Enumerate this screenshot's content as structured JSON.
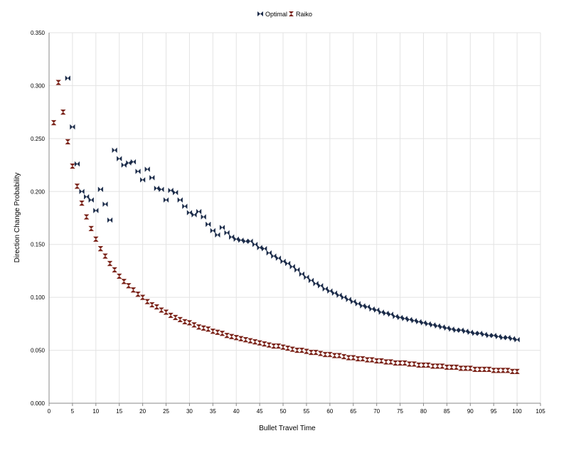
{
  "colors": {
    "optimal": "#1c2c4a",
    "raiko": "#7a2218",
    "grid": "#e3e3e3",
    "axis": "#888888"
  },
  "chart_data": {
    "type": "scatter",
    "xlabel": "Bullet Travel Time",
    "ylabel": "Direction Change Probability",
    "xlim": [
      0,
      105
    ],
    "ylim": [
      0,
      0.35
    ],
    "x_ticks": [
      "0",
      "5",
      "10",
      "15",
      "20",
      "25",
      "30",
      "35",
      "40",
      "45",
      "50",
      "55",
      "60",
      "65",
      "70",
      "75",
      "80",
      "85",
      "90",
      "95",
      "100",
      "105"
    ],
    "y_ticks": [
      "0.000",
      "0.050",
      "0.100",
      "0.150",
      "0.200",
      "0.250",
      "0.300",
      "0.350"
    ],
    "grid": true,
    "legend_position": "top-center",
    "series": [
      {
        "name": "Optimal",
        "marker": "bowtie",
        "points": [
          [
            4,
            0.307
          ],
          [
            5,
            0.261
          ],
          [
            6,
            0.226
          ],
          [
            7,
            0.2
          ],
          [
            8,
            0.195
          ],
          [
            9,
            0.192
          ],
          [
            10,
            0.182
          ],
          [
            11,
            0.202
          ],
          [
            12,
            0.188
          ],
          [
            13,
            0.173
          ],
          [
            14,
            0.239
          ],
          [
            15,
            0.231
          ],
          [
            16,
            0.225
          ],
          [
            17,
            0.227
          ],
          [
            18,
            0.228
          ],
          [
            19,
            0.219
          ],
          [
            20,
            0.211
          ],
          [
            21,
            0.221
          ],
          [
            22,
            0.213
          ],
          [
            23,
            0.203
          ],
          [
            24,
            0.202
          ],
          [
            25,
            0.192
          ],
          [
            26,
            0.201
          ],
          [
            27,
            0.199
          ],
          [
            28,
            0.192
          ],
          [
            29,
            0.186
          ],
          [
            30,
            0.18
          ],
          [
            31,
            0.178
          ],
          [
            32,
            0.181
          ],
          [
            33,
            0.176
          ],
          [
            34,
            0.169
          ],
          [
            35,
            0.163
          ],
          [
            36,
            0.159
          ],
          [
            37,
            0.166
          ],
          [
            38,
            0.161
          ],
          [
            39,
            0.157
          ],
          [
            40,
            0.155
          ],
          [
            41,
            0.154
          ],
          [
            42,
            0.153
          ],
          [
            43,
            0.153
          ],
          [
            44,
            0.15
          ],
          [
            45,
            0.147
          ],
          [
            46,
            0.146
          ],
          [
            47,
            0.142
          ],
          [
            48,
            0.139
          ],
          [
            49,
            0.137
          ],
          [
            50,
            0.134
          ],
          [
            51,
            0.132
          ],
          [
            52,
            0.129
          ],
          [
            53,
            0.126
          ],
          [
            54,
            0.122
          ],
          [
            55,
            0.119
          ],
          [
            56,
            0.116
          ],
          [
            57,
            0.113
          ],
          [
            58,
            0.111
          ],
          [
            59,
            0.108
          ],
          [
            60,
            0.106
          ],
          [
            61,
            0.104
          ],
          [
            62,
            0.102
          ],
          [
            63,
            0.1
          ],
          [
            64,
            0.098
          ],
          [
            65,
            0.096
          ],
          [
            66,
            0.094
          ],
          [
            67,
            0.092
          ],
          [
            68,
            0.091
          ],
          [
            69,
            0.089
          ],
          [
            70,
            0.088
          ],
          [
            71,
            0.086
          ],
          [
            72,
            0.085
          ],
          [
            73,
            0.084
          ],
          [
            74,
            0.082
          ],
          [
            75,
            0.081
          ],
          [
            76,
            0.08
          ],
          [
            77,
            0.079
          ],
          [
            78,
            0.078
          ],
          [
            79,
            0.077
          ],
          [
            80,
            0.076
          ],
          [
            81,
            0.075
          ],
          [
            82,
            0.074
          ],
          [
            83,
            0.073
          ],
          [
            84,
            0.072
          ],
          [
            85,
            0.071
          ],
          [
            86,
            0.07
          ],
          [
            87,
            0.069
          ],
          [
            88,
            0.069
          ],
          [
            89,
            0.068
          ],
          [
            90,
            0.067
          ],
          [
            91,
            0.066
          ],
          [
            92,
            0.066
          ],
          [
            93,
            0.065
          ],
          [
            94,
            0.064
          ],
          [
            95,
            0.064
          ],
          [
            96,
            0.063
          ],
          [
            97,
            0.062
          ],
          [
            98,
            0.062
          ],
          [
            99,
            0.061
          ],
          [
            100,
            0.06
          ]
        ]
      },
      {
        "name": "Raiko",
        "marker": "hourglass",
        "points": [
          [
            1,
            0.265
          ],
          [
            2,
            0.303
          ],
          [
            3,
            0.275
          ],
          [
            4,
            0.247
          ],
          [
            5,
            0.224
          ],
          [
            6,
            0.205
          ],
          [
            7,
            0.189
          ],
          [
            8,
            0.176
          ],
          [
            9,
            0.165
          ],
          [
            10,
            0.155
          ],
          [
            11,
            0.146
          ],
          [
            12,
            0.139
          ],
          [
            13,
            0.132
          ],
          [
            14,
            0.126
          ],
          [
            15,
            0.12
          ],
          [
            16,
            0.115
          ],
          [
            17,
            0.111
          ],
          [
            18,
            0.107
          ],
          [
            19,
            0.103
          ],
          [
            20,
            0.1
          ],
          [
            21,
            0.096
          ],
          [
            22,
            0.093
          ],
          [
            23,
            0.091
          ],
          [
            24,
            0.088
          ],
          [
            25,
            0.086
          ],
          [
            26,
            0.083
          ],
          [
            27,
            0.081
          ],
          [
            28,
            0.079
          ],
          [
            29,
            0.077
          ],
          [
            30,
            0.076
          ],
          [
            31,
            0.074
          ],
          [
            32,
            0.072
          ],
          [
            33,
            0.071
          ],
          [
            34,
            0.07
          ],
          [
            35,
            0.068
          ],
          [
            36,
            0.067
          ],
          [
            37,
            0.066
          ],
          [
            38,
            0.064
          ],
          [
            39,
            0.063
          ],
          [
            40,
            0.062
          ],
          [
            41,
            0.061
          ],
          [
            42,
            0.06
          ],
          [
            43,
            0.059
          ],
          [
            44,
            0.058
          ],
          [
            45,
            0.057
          ],
          [
            46,
            0.056
          ],
          [
            47,
            0.055
          ],
          [
            48,
            0.054
          ],
          [
            49,
            0.054
          ],
          [
            50,
            0.053
          ],
          [
            51,
            0.052
          ],
          [
            52,
            0.051
          ],
          [
            53,
            0.05
          ],
          [
            54,
            0.05
          ],
          [
            55,
            0.049
          ],
          [
            56,
            0.048
          ],
          [
            57,
            0.048
          ],
          [
            58,
            0.047
          ],
          [
            59,
            0.046
          ],
          [
            60,
            0.046
          ],
          [
            61,
            0.045
          ],
          [
            62,
            0.045
          ],
          [
            63,
            0.044
          ],
          [
            64,
            0.043
          ],
          [
            65,
            0.043
          ],
          [
            66,
            0.042
          ],
          [
            67,
            0.042
          ],
          [
            68,
            0.041
          ],
          [
            69,
            0.041
          ],
          [
            70,
            0.04
          ],
          [
            71,
            0.04
          ],
          [
            72,
            0.039
          ],
          [
            73,
            0.039
          ],
          [
            74,
            0.038
          ],
          [
            75,
            0.038
          ],
          [
            76,
            0.038
          ],
          [
            77,
            0.037
          ],
          [
            78,
            0.037
          ],
          [
            79,
            0.036
          ],
          [
            80,
            0.036
          ],
          [
            81,
            0.036
          ],
          [
            82,
            0.035
          ],
          [
            83,
            0.035
          ],
          [
            84,
            0.035
          ],
          [
            85,
            0.034
          ],
          [
            86,
            0.034
          ],
          [
            87,
            0.034
          ],
          [
            88,
            0.033
          ],
          [
            89,
            0.033
          ],
          [
            90,
            0.033
          ],
          [
            91,
            0.032
          ],
          [
            92,
            0.032
          ],
          [
            93,
            0.032
          ],
          [
            94,
            0.032
          ],
          [
            95,
            0.031
          ],
          [
            96,
            0.031
          ],
          [
            97,
            0.031
          ],
          [
            98,
            0.031
          ],
          [
            99,
            0.03
          ],
          [
            100,
            0.03
          ]
        ]
      }
    ]
  }
}
